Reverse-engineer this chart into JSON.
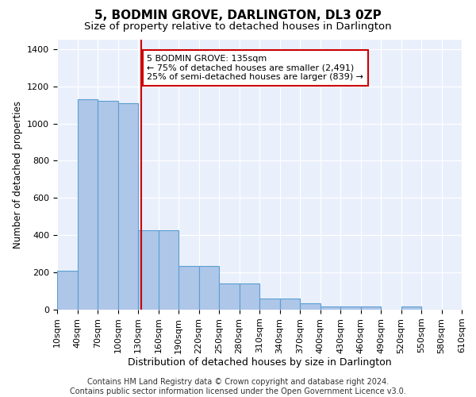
{
  "title": "5, BODMIN GROVE, DARLINGTON, DL3 0ZP",
  "subtitle": "Size of property relative to detached houses in Darlington",
  "xlabel": "Distribution of detached houses by size in Darlington",
  "ylabel": "Number of detached properties",
  "footer_line1": "Contains HM Land Registry data © Crown copyright and database right 2024.",
  "footer_line2": "Contains public sector information licensed under the Open Government Licence v3.0.",
  "bin_edges": [
    10,
    40,
    70,
    100,
    130,
    160,
    190,
    220,
    250,
    280,
    310,
    340,
    370,
    400,
    430,
    460,
    490,
    520,
    550,
    580,
    610
  ],
  "bar_heights": [
    207,
    1130,
    1120,
    1110,
    425,
    425,
    233,
    233,
    140,
    140,
    60,
    60,
    35,
    15,
    15,
    15,
    0,
    15,
    0,
    0
  ],
  "bar_color": "#aec6e8",
  "bar_edge_color": "#5a9fd4",
  "bar_edge_width": 0.8,
  "red_line_x": 135,
  "red_line_color": "#cc0000",
  "annotation_line1": "5 BODMIN GROVE: 135sqm",
  "annotation_line2": "← 75% of detached houses are smaller (2,491)",
  "annotation_line3": "25% of semi-detached houses are larger (839) →",
  "annotation_box_color": "#ffffff",
  "annotation_box_edge_color": "#cc0000",
  "ylim": [
    0,
    1450
  ],
  "yticks": [
    0,
    200,
    400,
    600,
    800,
    1000,
    1200,
    1400
  ],
  "background_color": "#eaf0fb",
  "grid_color": "#ffffff",
  "title_fontsize": 11,
  "subtitle_fontsize": 9.5,
  "xlabel_fontsize": 9,
  "ylabel_fontsize": 8.5,
  "tick_fontsize": 8,
  "annot_fontsize": 8,
  "footer_fontsize": 7
}
